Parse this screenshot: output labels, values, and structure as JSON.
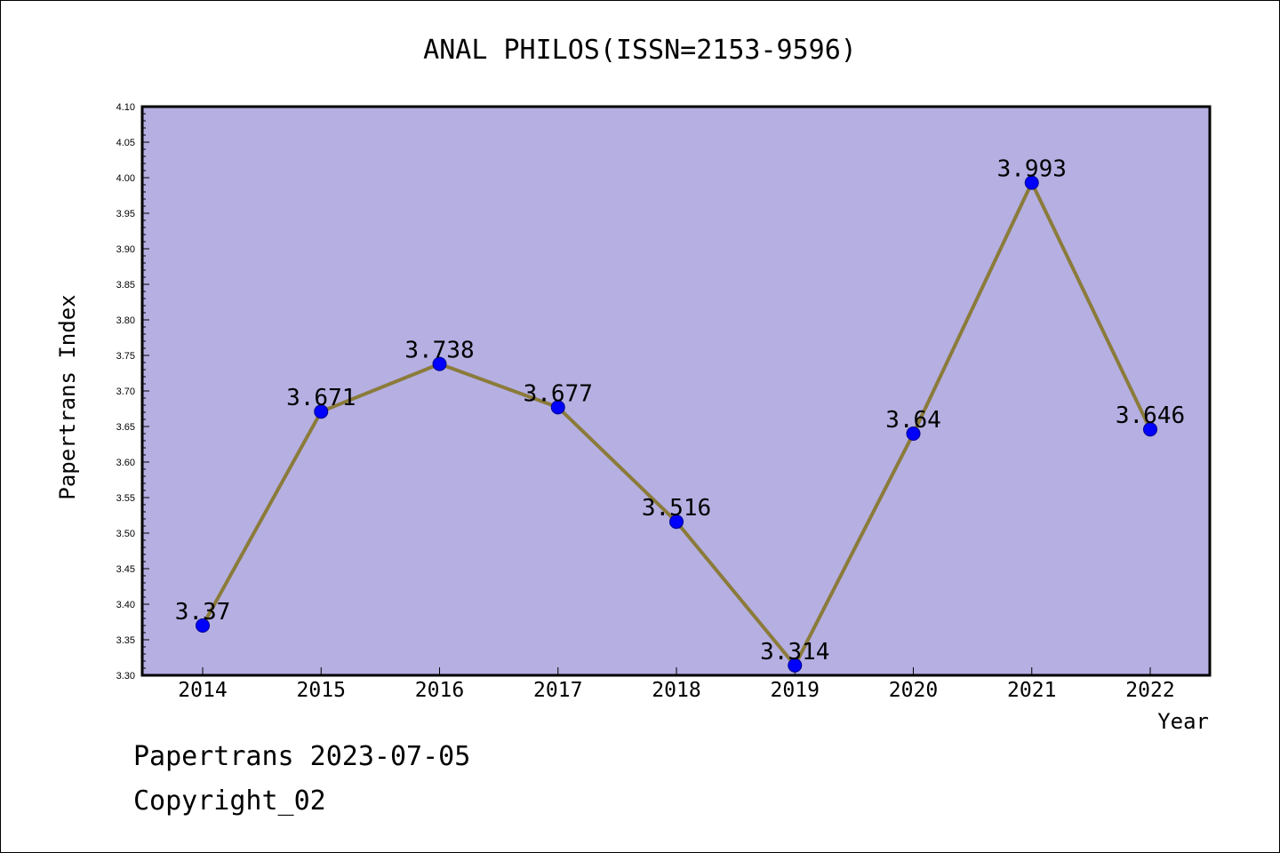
{
  "footer": {
    "line1": "Papertrans 2023-07-05",
    "line2": "Copyright_02"
  },
  "colors": {
    "plot_background": "#b5afe2",
    "line": "#8b7b3a",
    "marker": "#0000ff"
  },
  "chart_data": {
    "type": "line",
    "title": "ANAL PHILOS(ISSN=2153-9596)",
    "xlabel": "Year",
    "ylabel": "Papertrans Index",
    "categories": [
      "2014",
      "2015",
      "2016",
      "2017",
      "2018",
      "2019",
      "2020",
      "2021",
      "2022"
    ],
    "values": [
      3.37,
      3.671,
      3.738,
      3.677,
      3.516,
      3.314,
      3.64,
      3.993,
      3.646
    ],
    "data_labels": [
      "3.37",
      "3.671",
      "3.738",
      "3.677",
      "3.516",
      "3.314",
      "3.64",
      "3.993",
      "3.646"
    ],
    "ylim": [
      3.3,
      4.1
    ],
    "yticks": [
      "3.30",
      "3.35",
      "3.40",
      "3.45",
      "3.50",
      "3.55",
      "3.60",
      "3.65",
      "3.70",
      "3.75",
      "3.80",
      "3.85",
      "3.90",
      "3.95",
      "4.00",
      "4.05",
      "4.10"
    ],
    "grid": false,
    "legend": "none"
  }
}
